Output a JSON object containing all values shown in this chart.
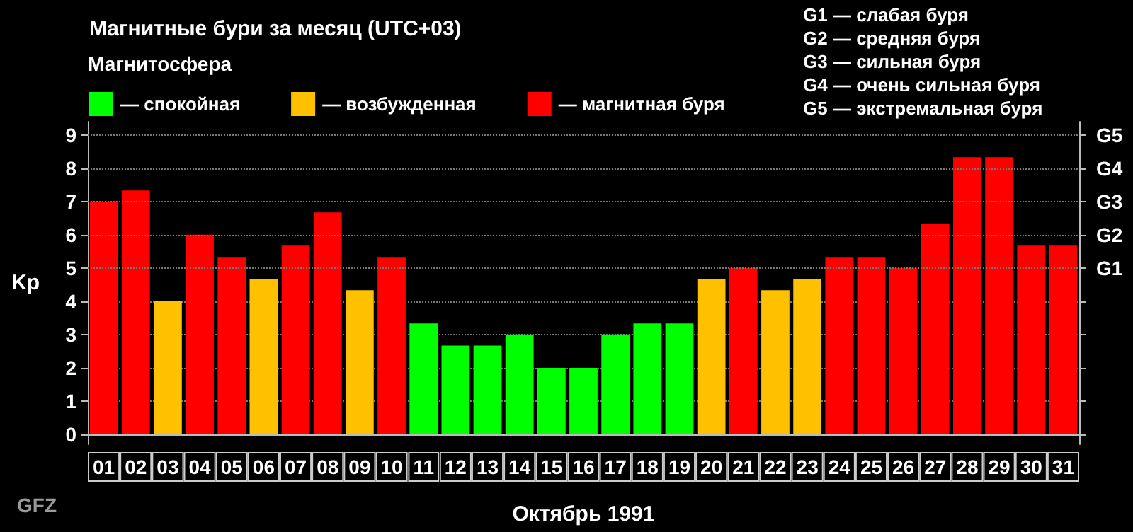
{
  "chart_data": {
    "type": "bar",
    "title": "Магнитные бури за месяц (UTC+03)",
    "xlabel": "Октябрь 1991",
    "ylabel": "Kp",
    "legend_title": "Магнитосфера",
    "categories": [
      "01",
      "02",
      "03",
      "04",
      "05",
      "06",
      "07",
      "08",
      "09",
      "10",
      "11",
      "12",
      "13",
      "14",
      "15",
      "16",
      "17",
      "18",
      "19",
      "20",
      "21",
      "22",
      "23",
      "24",
      "25",
      "26",
      "27",
      "28",
      "29",
      "30",
      "31"
    ],
    "series": [
      {
        "name": "— спокойная",
        "color": "#00ff00",
        "values": [
          null,
          null,
          null,
          null,
          null,
          null,
          null,
          null,
          null,
          null,
          3.33,
          2.67,
          2.67,
          3,
          2,
          2,
          3,
          3.33,
          3.33,
          null,
          null,
          null,
          null,
          null,
          null,
          null,
          null,
          null,
          null,
          null,
          null
        ]
      },
      {
        "name": "— возбужденная",
        "color": "#ffc000",
        "values": [
          null,
          null,
          4,
          null,
          null,
          4.67,
          null,
          null,
          4.33,
          null,
          null,
          null,
          null,
          null,
          null,
          null,
          null,
          null,
          null,
          4.67,
          null,
          4.33,
          4.67,
          null,
          null,
          null,
          null,
          null,
          null,
          null,
          null
        ]
      },
      {
        "name": "— магнитная буря",
        "color": "#ff0000",
        "values": [
          7,
          7.33,
          null,
          6,
          5.33,
          null,
          5.67,
          6.67,
          null,
          5.33,
          null,
          null,
          null,
          null,
          null,
          null,
          null,
          null,
          null,
          null,
          5,
          null,
          null,
          5.33,
          5.33,
          5,
          6.33,
          8.33,
          8.33,
          5.67,
          5.67
        ]
      }
    ],
    "ylim": [
      -0.3,
      9.4
    ],
    "yticks": [
      0,
      1,
      2,
      3,
      4,
      5,
      6,
      7,
      8,
      9
    ],
    "ref_lines": [
      {
        "axis": "y",
        "value": 5,
        "label": "G1"
      },
      {
        "axis": "y",
        "value": 6,
        "label": "G2"
      },
      {
        "axis": "y",
        "value": 7,
        "label": "G3"
      },
      {
        "axis": "y",
        "value": 8,
        "label": "G4"
      },
      {
        "axis": "y",
        "value": 9,
        "label": "G5"
      }
    ],
    "grid": "y",
    "legend": "top left",
    "annotations": [
      "G1 — слабая буря",
      "G2 — средняя буря",
      "G3 — сильная буря",
      "G4 — очень сильная буря",
      "G5 — экстремальная буря",
      "GFZ"
    ]
  }
}
